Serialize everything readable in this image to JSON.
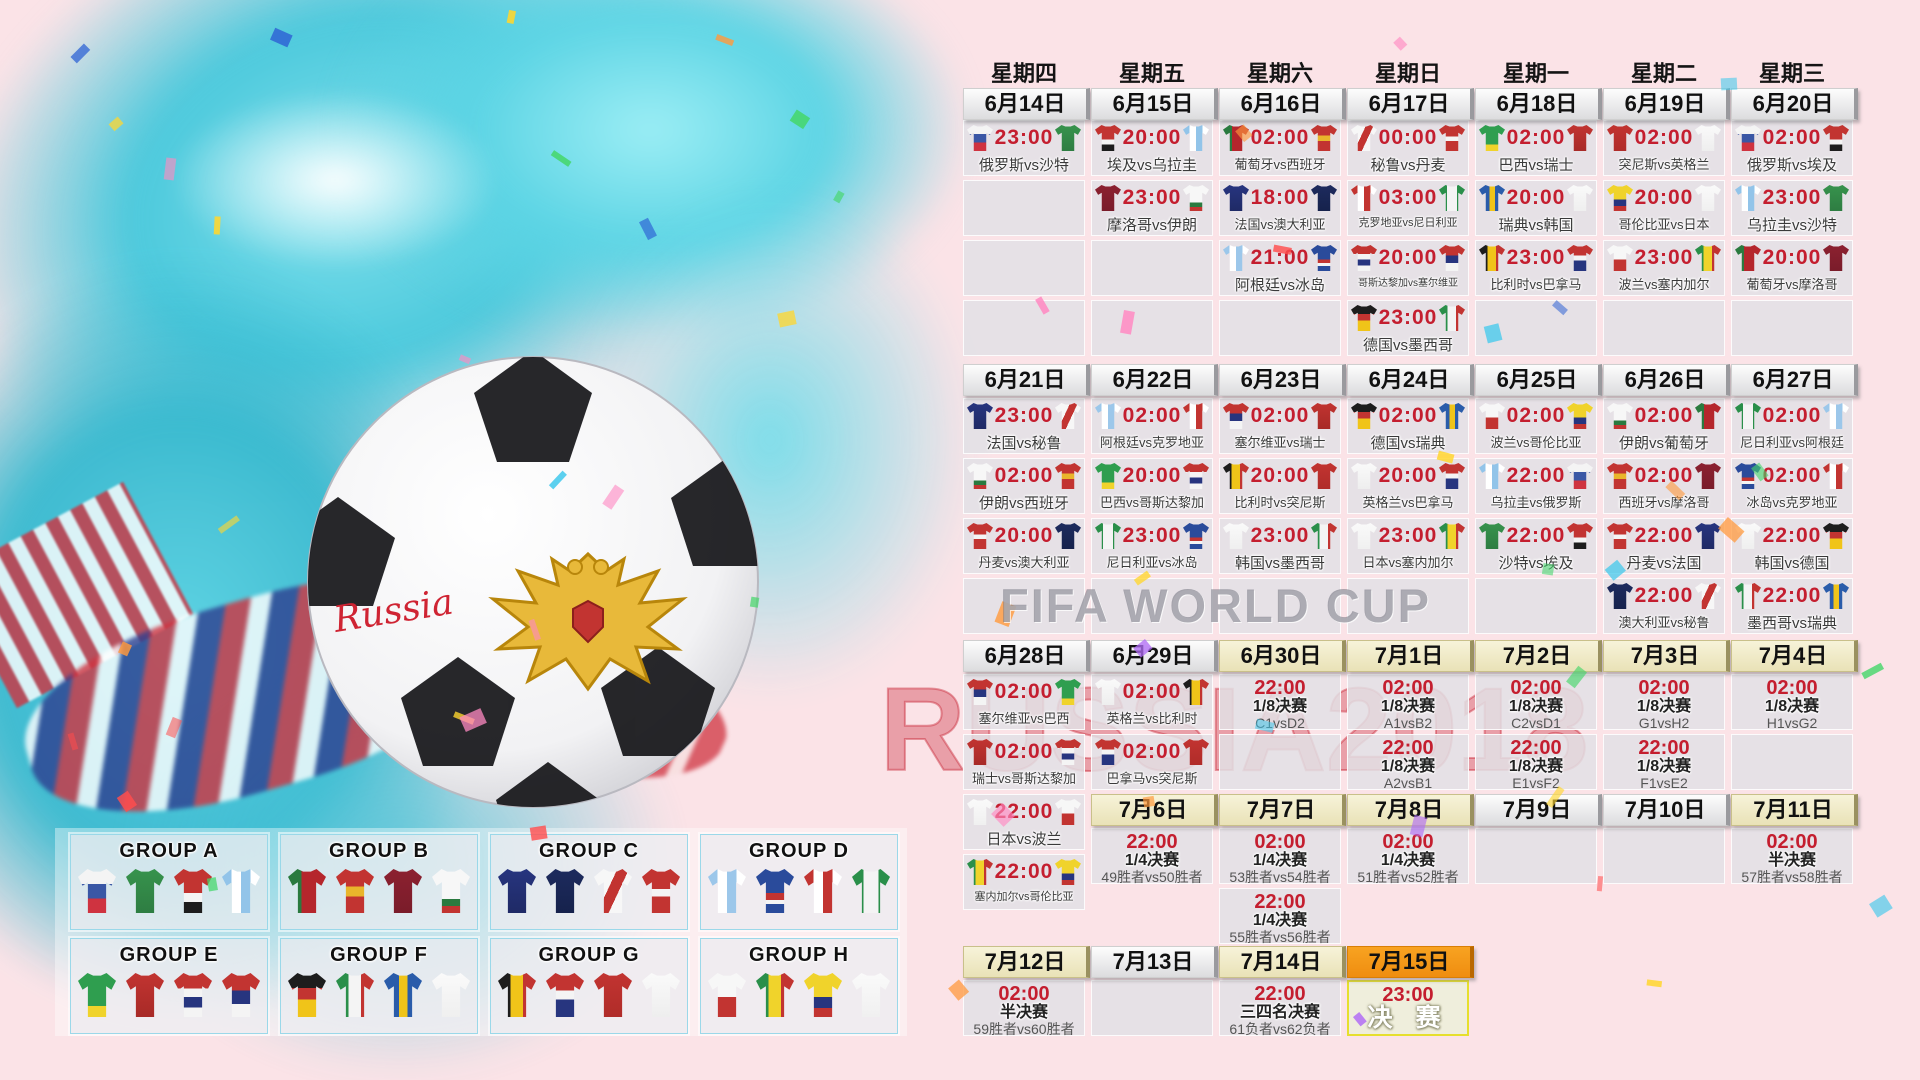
{
  "watermarks": {
    "fifa": "FIFA WORLD CUP",
    "russia": "RUSSIA2018"
  },
  "ball_scribble": "Russia",
  "colors": {
    "time_red": "#c41e2f",
    "header_cream": "#efe9c6",
    "header_orange": "#f59018",
    "final_border": "#e6df2e",
    "pink_bg": "#fbe3e7",
    "teal": "#4cc9dc"
  },
  "calendar": {
    "weekdays": [
      "星期四",
      "星期五",
      "星期六",
      "星期日",
      "星期一",
      "星期二",
      "星期三"
    ],
    "date_headers": [
      {
        "c": 0,
        "r": "d1",
        "label": "6月14日",
        "v": "s"
      },
      {
        "c": 1,
        "r": "d1",
        "label": "6月15日",
        "v": "s"
      },
      {
        "c": 2,
        "r": "d1",
        "label": "6月16日",
        "v": "s"
      },
      {
        "c": 3,
        "r": "d1",
        "label": "6月17日",
        "v": "s"
      },
      {
        "c": 4,
        "r": "d1",
        "label": "6月18日",
        "v": "s"
      },
      {
        "c": 5,
        "r": "d1",
        "label": "6月19日",
        "v": "s"
      },
      {
        "c": 6,
        "r": "d1",
        "label": "6月20日",
        "v": "s"
      },
      {
        "c": 0,
        "r": "d2",
        "label": "6月21日",
        "v": "s"
      },
      {
        "c": 1,
        "r": "d2",
        "label": "6月22日",
        "v": "s"
      },
      {
        "c": 2,
        "r": "d2",
        "label": "6月23日",
        "v": "s"
      },
      {
        "c": 3,
        "r": "d2",
        "label": "6月24日",
        "v": "s"
      },
      {
        "c": 4,
        "r": "d2",
        "label": "6月25日",
        "v": "s"
      },
      {
        "c": 5,
        "r": "d2",
        "label": "6月26日",
        "v": "s"
      },
      {
        "c": 6,
        "r": "d2",
        "label": "6月27日",
        "v": "s"
      },
      {
        "c": 0,
        "r": "d3",
        "label": "6月28日",
        "v": "s"
      },
      {
        "c": 1,
        "r": "d3",
        "label": "6月29日",
        "v": "s"
      },
      {
        "c": 2,
        "r": "d3",
        "label": "6月30日",
        "v": "c"
      },
      {
        "c": 3,
        "r": "d3",
        "label": "7月1日",
        "v": "c"
      },
      {
        "c": 4,
        "r": "d3",
        "label": "7月2日",
        "v": "c"
      },
      {
        "c": 5,
        "r": "d3",
        "label": "7月3日",
        "v": "c"
      },
      {
        "c": 6,
        "r": "d3",
        "label": "7月4日",
        "v": "c"
      },
      {
        "c": 1,
        "r": "h4",
        "label": "7月6日",
        "v": "c"
      },
      {
        "c": 2,
        "r": "h4",
        "label": "7月7日",
        "v": "c"
      },
      {
        "c": 3,
        "r": "h4",
        "label": "7月8日",
        "v": "c"
      },
      {
        "c": 4,
        "r": "h4",
        "label": "7月9日",
        "v": "s"
      },
      {
        "c": 5,
        "r": "h4",
        "label": "7月10日",
        "v": "s"
      },
      {
        "c": 6,
        "r": "h4",
        "label": "7月11日",
        "v": "c"
      },
      {
        "c": 0,
        "r": "d5",
        "label": "7月12日",
        "v": "c"
      },
      {
        "c": 1,
        "r": "d5",
        "label": "7月13日",
        "v": "s"
      },
      {
        "c": 2,
        "r": "d5",
        "label": "7月14日",
        "v": "c"
      },
      {
        "c": 3,
        "r": "d5",
        "label": "7月15日",
        "v": "o"
      }
    ],
    "cells": [
      {
        "c": 0,
        "r": "a1",
        "t": "m",
        "time": "23:00",
        "h": "俄罗斯",
        "a": "沙特"
      },
      {
        "c": 0,
        "r": "a2",
        "t": "e"
      },
      {
        "c": 0,
        "r": "a3",
        "t": "e"
      },
      {
        "c": 0,
        "r": "a4",
        "t": "e"
      },
      {
        "c": 1,
        "r": "a1",
        "t": "m",
        "time": "20:00",
        "h": "埃及",
        "a": "乌拉圭"
      },
      {
        "c": 1,
        "r": "a2",
        "t": "m",
        "time": "23:00",
        "h": "摩洛哥",
        "a": "伊朗"
      },
      {
        "c": 1,
        "r": "a3",
        "t": "e"
      },
      {
        "c": 1,
        "r": "a4",
        "t": "e"
      },
      {
        "c": 2,
        "r": "a1",
        "t": "m",
        "time": "02:00",
        "h": "葡萄牙",
        "a": "西班牙"
      },
      {
        "c": 2,
        "r": "a2",
        "t": "m",
        "time": "18:00",
        "h": "法国",
        "a": "澳大利亚"
      },
      {
        "c": 2,
        "r": "a3",
        "t": "m",
        "time": "21:00",
        "h": "阿根廷",
        "a": "冰岛"
      },
      {
        "c": 2,
        "r": "a4",
        "t": "e"
      },
      {
        "c": 3,
        "r": "a1",
        "t": "m",
        "time": "00:00",
        "h": "秘鲁",
        "a": "丹麦"
      },
      {
        "c": 3,
        "r": "a2",
        "t": "m",
        "time": "03:00",
        "h": "克罗地亚",
        "a": "尼日利亚"
      },
      {
        "c": 3,
        "r": "a3",
        "t": "m",
        "time": "20:00",
        "h": "哥斯达黎加",
        "a": "塞尔维亚"
      },
      {
        "c": 3,
        "r": "a4",
        "t": "m",
        "time": "23:00",
        "h": "德国",
        "a": "墨西哥"
      },
      {
        "c": 4,
        "r": "a1",
        "t": "m",
        "time": "02:00",
        "h": "巴西",
        "a": "瑞士"
      },
      {
        "c": 4,
        "r": "a2",
        "t": "m",
        "time": "20:00",
        "h": "瑞典",
        "a": "韩国"
      },
      {
        "c": 4,
        "r": "a3",
        "t": "m",
        "time": "23:00",
        "h": "比利时",
        "a": "巴拿马"
      },
      {
        "c": 4,
        "r": "a4",
        "t": "e"
      },
      {
        "c": 5,
        "r": "a1",
        "t": "m",
        "time": "02:00",
        "h": "突尼斯",
        "a": "英格兰"
      },
      {
        "c": 5,
        "r": "a2",
        "t": "m",
        "time": "20:00",
        "h": "哥伦比亚",
        "a": "日本"
      },
      {
        "c": 5,
        "r": "a3",
        "t": "m",
        "time": "23:00",
        "h": "波兰",
        "a": "塞内加尔"
      },
      {
        "c": 5,
        "r": "a4",
        "t": "e"
      },
      {
        "c": 6,
        "r": "a1",
        "t": "m",
        "time": "02:00",
        "h": "俄罗斯",
        "a": "埃及"
      },
      {
        "c": 6,
        "r": "a2",
        "t": "m",
        "time": "23:00",
        "h": "乌拉圭",
        "a": "沙特"
      },
      {
        "c": 6,
        "r": "a3",
        "t": "m",
        "time": "20:00",
        "h": "葡萄牙",
        "a": "摩洛哥"
      },
      {
        "c": 6,
        "r": "a4",
        "t": "e"
      },
      {
        "c": 0,
        "r": "b1",
        "t": "m",
        "time": "23:00",
        "h": "法国",
        "a": "秘鲁"
      },
      {
        "c": 0,
        "r": "b2",
        "t": "m",
        "time": "02:00",
        "h": "伊朗",
        "a": "西班牙"
      },
      {
        "c": 0,
        "r": "b3",
        "t": "m",
        "time": "20:00",
        "h": "丹麦",
        "a": "澳大利亚"
      },
      {
        "c": 0,
        "r": "b4",
        "t": "e"
      },
      {
        "c": 1,
        "r": "b1",
        "t": "m",
        "time": "02:00",
        "h": "阿根廷",
        "a": "克罗地亚"
      },
      {
        "c": 1,
        "r": "b2",
        "t": "m",
        "time": "20:00",
        "h": "巴西",
        "a": "哥斯达黎加"
      },
      {
        "c": 1,
        "r": "b3",
        "t": "m",
        "time": "23:00",
        "h": "尼日利亚",
        "a": "冰岛"
      },
      {
        "c": 1,
        "r": "b4",
        "t": "e"
      },
      {
        "c": 2,
        "r": "b1",
        "t": "m",
        "time": "02:00",
        "h": "塞尔维亚",
        "a": "瑞士"
      },
      {
        "c": 2,
        "r": "b2",
        "t": "m",
        "time": "20:00",
        "h": "比利时",
        "a": "突尼斯"
      },
      {
        "c": 2,
        "r": "b3",
        "t": "m",
        "time": "23:00",
        "h": "韩国",
        "a": "墨西哥"
      },
      {
        "c": 2,
        "r": "b4",
        "t": "e"
      },
      {
        "c": 3,
        "r": "b1",
        "t": "m",
        "time": "02:00",
        "h": "德国",
        "a": "瑞典"
      },
      {
        "c": 3,
        "r": "b2",
        "t": "m",
        "time": "20:00",
        "h": "英格兰",
        "a": "巴拿马"
      },
      {
        "c": 3,
        "r": "b3",
        "t": "m",
        "time": "23:00",
        "h": "日本",
        "a": "塞内加尔"
      },
      {
        "c": 3,
        "r": "b4",
        "t": "e"
      },
      {
        "c": 4,
        "r": "b1",
        "t": "m",
        "time": "02:00",
        "h": "波兰",
        "a": "哥伦比亚"
      },
      {
        "c": 4,
        "r": "b2",
        "t": "m",
        "time": "22:00",
        "h": "乌拉圭",
        "a": "俄罗斯"
      },
      {
        "c": 4,
        "r": "b3",
        "t": "m",
        "time": "22:00",
        "h": "沙特",
        "a": "埃及"
      },
      {
        "c": 4,
        "r": "b4",
        "t": "e"
      },
      {
        "c": 5,
        "r": "b1",
        "t": "m",
        "time": "02:00",
        "h": "伊朗",
        "a": "葡萄牙"
      },
      {
        "c": 5,
        "r": "b2",
        "t": "m",
        "time": "02:00",
        "h": "西班牙",
        "a": "摩洛哥"
      },
      {
        "c": 5,
        "r": "b3",
        "t": "m",
        "time": "22:00",
        "h": "丹麦",
        "a": "法国"
      },
      {
        "c": 5,
        "r": "b4",
        "t": "m",
        "time": "22:00",
        "h": "澳大利亚",
        "a": "秘鲁"
      },
      {
        "c": 6,
        "r": "b1",
        "t": "m",
        "time": "02:00",
        "h": "尼日利亚",
        "a": "阿根廷"
      },
      {
        "c": 6,
        "r": "b2",
        "t": "m",
        "time": "02:00",
        "h": "冰岛",
        "a": "克罗地亚"
      },
      {
        "c": 6,
        "r": "b3",
        "t": "m",
        "time": "22:00",
        "h": "韩国",
        "a": "德国"
      },
      {
        "c": 6,
        "r": "b4",
        "t": "m",
        "time": "22:00",
        "h": "墨西哥",
        "a": "瑞典"
      },
      {
        "c": 0,
        "r": "c1",
        "t": "m",
        "time": "02:00",
        "h": "塞尔维亚",
        "a": "巴西"
      },
      {
        "c": 0,
        "r": "c2",
        "t": "m",
        "time": "02:00",
        "h": "瑞士",
        "a": "哥斯达黎加"
      },
      {
        "c": 0,
        "r": "c3",
        "t": "m",
        "time": "22:00",
        "h": "日本",
        "a": "波兰"
      },
      {
        "c": 0,
        "r": "c4",
        "t": "m",
        "time": "22:00",
        "h": "塞内加尔",
        "a": "哥伦比亚"
      },
      {
        "c": 1,
        "r": "c1",
        "t": "m",
        "time": "02:00",
        "h": "英格兰",
        "a": "比利时"
      },
      {
        "c": 1,
        "r": "c2",
        "t": "m",
        "time": "02:00",
        "h": "巴拿马",
        "a": "突尼斯"
      },
      {
        "c": 2,
        "r": "c1",
        "t": "k",
        "time": "22:00",
        "round": "1/8决赛",
        "pair": "C1vsD2"
      },
      {
        "c": 2,
        "r": "c2",
        "t": "e"
      },
      {
        "c": 3,
        "r": "c1",
        "t": "k",
        "time": "02:00",
        "round": "1/8决赛",
        "pair": "A1vsB2"
      },
      {
        "c": 3,
        "r": "c2",
        "t": "k",
        "time": "22:00",
        "round": "1/8决赛",
        "pair": "A2vsB1"
      },
      {
        "c": 4,
        "r": "c1",
        "t": "k",
        "time": "02:00",
        "round": "1/8决赛",
        "pair": "C2vsD1"
      },
      {
        "c": 4,
        "r": "c2",
        "t": "k",
        "time": "22:00",
        "round": "1/8决赛",
        "pair": "E1vsF2"
      },
      {
        "c": 5,
        "r": "c1",
        "t": "k",
        "time": "02:00",
        "round": "1/8决赛",
        "pair": "G1vsH2"
      },
      {
        "c": 5,
        "r": "c2",
        "t": "k",
        "time": "22:00",
        "round": "1/8决赛",
        "pair": "F1vsE2"
      },
      {
        "c": 6,
        "r": "c1",
        "t": "k",
        "time": "02:00",
        "round": "1/8决赛",
        "pair": "H1vsG2"
      },
      {
        "c": 6,
        "r": "c2",
        "t": "e"
      },
      {
        "c": 1,
        "r": "k1",
        "t": "k",
        "time": "22:00",
        "round": "1/4决赛",
        "pair": "49胜者vs50胜者"
      },
      {
        "c": 2,
        "r": "k1",
        "t": "k",
        "time": "02:00",
        "round": "1/4决赛",
        "pair": "53胜者vs54胜者"
      },
      {
        "c": 2,
        "r": "k2",
        "t": "k",
        "time": "22:00",
        "round": "1/4决赛",
        "pair": "55胜者vs56胜者"
      },
      {
        "c": 3,
        "r": "k1",
        "t": "k",
        "time": "02:00",
        "round": "1/4决赛",
        "pair": "51胜者vs52胜者"
      },
      {
        "c": 4,
        "r": "k1",
        "t": "e"
      },
      {
        "c": 5,
        "r": "k1",
        "t": "e"
      },
      {
        "c": 6,
        "r": "k1",
        "t": "k",
        "time": "02:00",
        "round": "半决赛",
        "pair": "57胜者vs58胜者"
      },
      {
        "c": 0,
        "r": "e1",
        "t": "k",
        "time": "02:00",
        "round": "半决赛",
        "pair": "59胜者vs60胜者"
      },
      {
        "c": 1,
        "r": "e1",
        "t": "e"
      },
      {
        "c": 2,
        "r": "e1",
        "t": "k",
        "time": "22:00",
        "round": "三四名决赛",
        "pair": "61负者vs62负者"
      },
      {
        "c": 3,
        "r": "e1",
        "t": "f",
        "time": "23:00",
        "label": "决 赛"
      }
    ]
  },
  "groups": [
    {
      "label": "GROUP A",
      "teams": [
        "俄罗斯",
        "沙特",
        "埃及",
        "乌拉圭"
      ]
    },
    {
      "label": "GROUP B",
      "teams": [
        "葡萄牙",
        "西班牙",
        "摩洛哥",
        "伊朗"
      ]
    },
    {
      "label": "GROUP C",
      "teams": [
        "法国",
        "澳大利亚",
        "秘鲁",
        "丹麦"
      ]
    },
    {
      "label": "GROUP D",
      "teams": [
        "阿根廷",
        "冰岛",
        "克罗地亚",
        "尼日利亚"
      ]
    },
    {
      "label": "GROUP E",
      "teams": [
        "巴西",
        "瑞士",
        "哥斯达黎加",
        "塞尔维亚"
      ]
    },
    {
      "label": "GROUP F",
      "teams": [
        "德国",
        "墨西哥",
        "瑞典",
        "韩国"
      ]
    },
    {
      "label": "GROUP G",
      "teams": [
        "比利时",
        "巴拿马",
        "突尼斯",
        "英格兰"
      ]
    },
    {
      "label": "GROUP H",
      "teams": [
        "波兰",
        "塞内加尔",
        "哥伦比亚",
        "日本"
      ]
    }
  ],
  "jerseys": {
    "俄罗斯": "linear-gradient(180deg,#f4f4f4 0 34%,#3a57a5 34% 67%,#cf3340 67%)",
    "沙特": "linear-gradient(180deg,#37934d,#2e7d42)",
    "埃及": "linear-gradient(180deg,#c23431 0 55%,#f4f4f4 55% 75%,#1d1d1d 75%)",
    "乌拉圭": "linear-gradient(90deg,#92c4e9 0 25%,#fff 25% 50%,#92c4e9 50% 75%,#fff 75%)",
    "葡萄牙": "linear-gradient(90deg,#2a7a3f 0 35%,#b5262c 35%)",
    "西班牙": "linear-gradient(180deg,#c23431 0 40%,#e9b52b 40% 62%,#c23431 62%)",
    "摩洛哥": "linear-gradient(180deg,#8c2130,#7a1c2a)",
    "伊朗": "linear-gradient(180deg,#f7f7f7 0 68%,#2a7a3f 68% 84%,#c23431 84%)",
    "法国": "linear-gradient(180deg,#27357f,#1f2a66)",
    "澳大利亚": "linear-gradient(180deg,#1d2b5e,#16224c)",
    "秘鲁": "linear-gradient(115deg,#f7f7f7 0 40%,#c23431 40% 60%,#f7f7f7 60%)",
    "丹麦": "linear-gradient(180deg,#c23431 0 45%,#f4f4f4 45% 62%,#c23431 62%)",
    "阿根廷": "linear-gradient(90deg,#9cc7ea 0 25%,#fff 25% 50%,#9cc7ea 50% 75%,#fff 75%)",
    "冰岛": "linear-gradient(180deg,#2a4b9b 0 55%,#c23431 55% 70%,#f4f4f4 70% 80%,#2a4b9b 80%)",
    "克罗地亚": "linear-gradient(90deg,#c23431 0 25%,#fff 25% 50%,#c23431 50% 75%,#fff 75%)",
    "尼日利亚": "linear-gradient(90deg,#2a8f4a 0 30%,#f4f4f4 30% 70%,#2a8f4a 70%)",
    "巴西": "linear-gradient(180deg,#2f9e4f 0 75%,#f0d32b 75%)",
    "瑞士": "linear-gradient(180deg,#c23431,#a82a27)",
    "哥斯达黎加": "linear-gradient(180deg,#c23431 0 35%,#f4f4f4 35% 55%,#27357f 55% 78%,#f4f4f4 78%)",
    "塞尔维亚": "linear-gradient(180deg,#c23431 0 40%,#27357f 40% 70%,#f4f4f4 70%)",
    "德国": "linear-gradient(180deg,#1d1d1d 0 34%,#c23431 34% 60%,#f0c419 60%)",
    "墨西哥": "linear-gradient(90deg,#2a8f4a 0 33%,#f4f4f4 33% 66%,#c23431 66%)",
    "瑞典": "linear-gradient(90deg,#2a5caa 0 40%,#f0c419 40% 62%,#2a5caa 62%)",
    "韩国": "linear-gradient(180deg,#fafafa,#efefef)",
    "比利时": "linear-gradient(90deg,#1d1d1d 0 33%,#f0c419 33% 66%,#c23431 66%)",
    "巴拿马": "linear-gradient(180deg,#c23431 0 40%,#f4f4f4 40% 60%,#27357f 60%)",
    "突尼斯": "linear-gradient(180deg,#c23431,#b02c29)",
    "英格兰": "linear-gradient(180deg,#fafafa,#eeeeee)",
    "波兰": "linear-gradient(180deg,#f7f7f7 0 55%,#c23431 55%)",
    "塞内加尔": "linear-gradient(90deg,#2a8f4a 0 33%,#f0d32b 33% 66%,#c23431 66%)",
    "哥伦比亚": "linear-gradient(180deg,#f0d32b 0 55%,#27357f 55% 80%,#c23431 80%)",
    "日本": "linear-gradient(180deg,#fafafa,#f0f0f0)"
  }
}
